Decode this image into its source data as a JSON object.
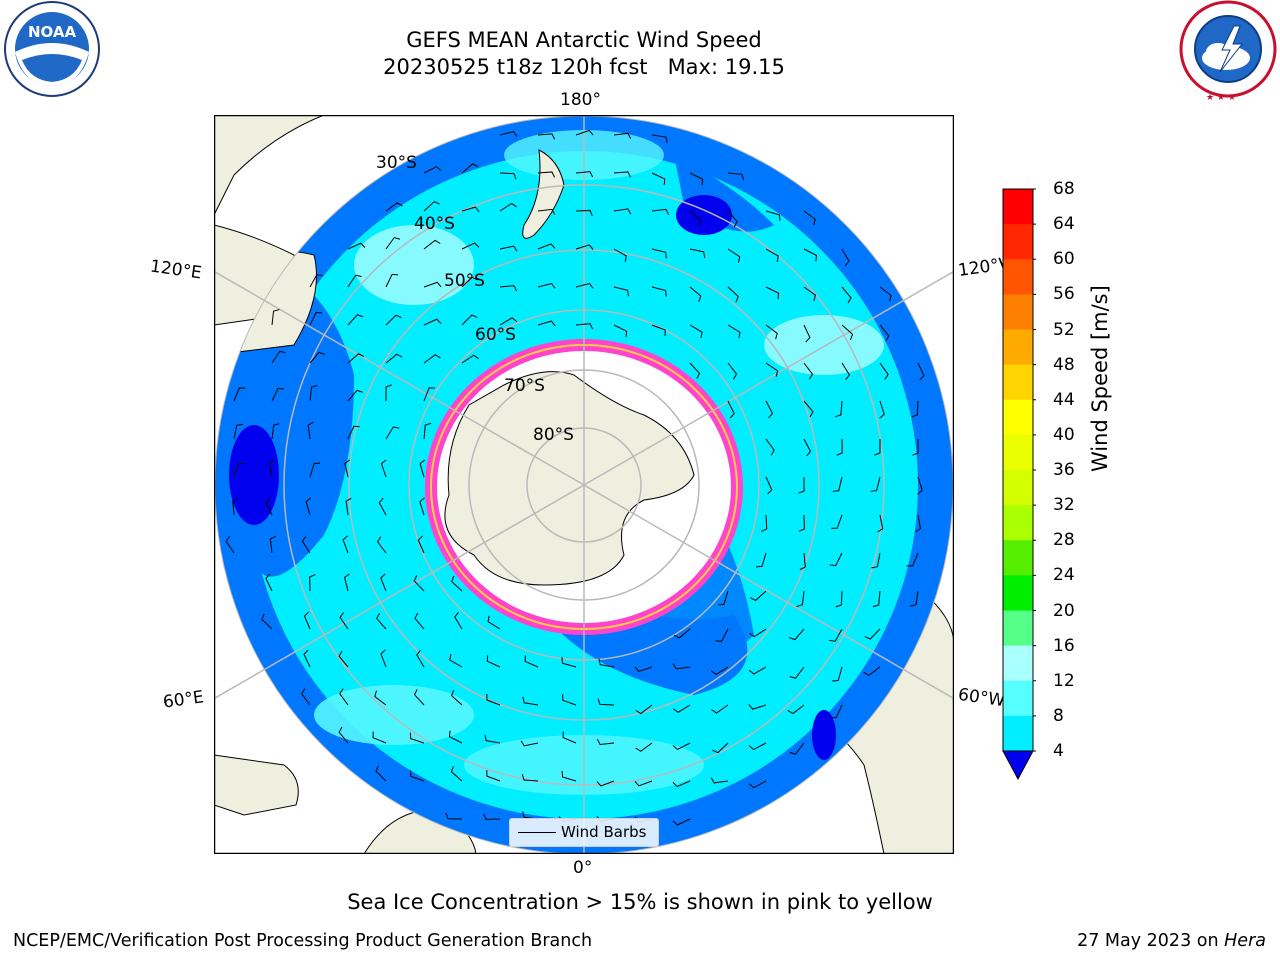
{
  "title_line1": "GEFS MEAN Antarctic Wind Speed",
  "title_line2": "20230525 t18z 120h fcst   Max: 19.15",
  "map": {
    "longitude_labels": {
      "top": "180°",
      "bottom": "0°",
      "upper_left": "120°E",
      "lower_left": "60°E",
      "upper_right": "120°W",
      "lower_right": "60°W"
    },
    "latitude_labels": [
      "30°S",
      "40°S",
      "50°S",
      "60°S",
      "70°S",
      "80°S"
    ],
    "legend_label": "Wind Barbs",
    "colors": {
      "land": "#efefdf",
      "ocean_4_8": "#0077ff",
      "ocean_8_12": "#00eeff",
      "ocean_12_16": "#55f6ff",
      "ocean_16_20": "#a8fcff",
      "sea_ice_pink": "#ff44cc",
      "sea_ice_yellow": "#ffcc44",
      "graticule": "#b9b9b9"
    }
  },
  "colorbar": {
    "label": "Wind Speed [m/s]",
    "ticks": [
      "68",
      "64",
      "60",
      "56",
      "52",
      "48",
      "44",
      "40",
      "36",
      "32",
      "28",
      "24",
      "20",
      "16",
      "12",
      "8",
      "4"
    ],
    "colors": [
      "#ff0000",
      "#ff2600",
      "#ff5500",
      "#ff7f00",
      "#ffaa00",
      "#ffd400",
      "#ffff00",
      "#eaff00",
      "#d4ff00",
      "#aaff00",
      "#55ee00",
      "#00ee00",
      "#55ff88",
      "#aaffff",
      "#55ffff",
      "#00eeff",
      "#0077ff"
    ],
    "under_color": "#0000ee"
  },
  "caption": "Sea Ice Concentration > 15% is shown in pink to yellow",
  "footer_left": "NCEP/EMC/Verification Post Processing Product Generation Branch",
  "footer_right_date": "27 May 2023 on ",
  "footer_right_host": "Hera",
  "logos": {
    "left": "NOAA",
    "right": "NATIONAL WEATHER SERVICE"
  }
}
